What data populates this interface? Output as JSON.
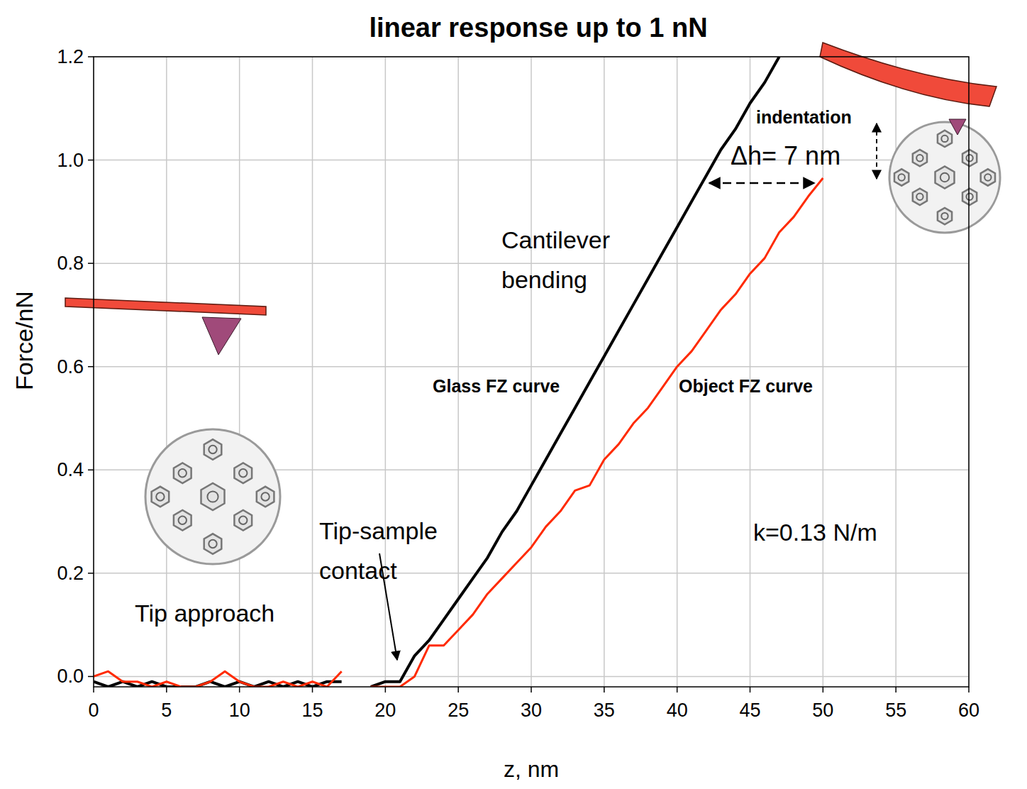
{
  "chart_data": {
    "type": "line",
    "title": "linear response up to 1 nN",
    "x_label": "z, nm",
    "y_label": "Force/nN",
    "x": [
      0,
      1,
      2,
      3,
      4,
      5,
      6,
      7,
      8,
      9,
      10,
      11,
      12,
      13,
      14,
      15,
      16,
      17,
      18,
      19,
      20,
      21,
      22,
      23,
      24,
      25,
      26,
      27,
      28,
      29,
      30,
      31,
      32,
      33,
      34,
      35,
      36,
      37,
      38,
      39,
      40,
      41,
      42,
      43,
      44,
      45,
      46,
      47,
      48,
      49,
      50
    ],
    "series": [
      {
        "name": "Glass FZ curve",
        "color": "#000000",
        "values": [
          -0.01,
          -0.02,
          -0.01,
          -0.02,
          -0.01,
          -0.02,
          -0.02,
          -0.02,
          -0.01,
          -0.02,
          -0.01,
          -0.02,
          -0.01,
          -0.02,
          -0.01,
          -0.02,
          -0.01,
          -0.01,
          null,
          -0.02,
          -0.01,
          -0.01,
          0.04,
          0.07,
          0.11,
          0.15,
          0.19,
          0.23,
          0.28,
          0.32,
          0.37,
          0.42,
          0.47,
          0.52,
          0.57,
          0.62,
          0.67,
          0.72,
          0.77,
          0.82,
          0.87,
          0.92,
          0.97,
          1.02,
          1.06,
          1.11,
          1.15,
          1.2,
          null,
          null,
          null
        ]
      },
      {
        "name": "Object FZ curve",
        "color": "#ff2a00",
        "values": [
          0,
          0.01,
          -0.01,
          -0.01,
          -0.02,
          -0.01,
          -0.02,
          -0.02,
          -0.01,
          0.01,
          -0.01,
          -0.02,
          -0.02,
          -0.01,
          -0.02,
          -0.01,
          -0.02,
          0.01,
          null,
          -0.02,
          -0.02,
          -0.02,
          0.0,
          0.06,
          0.06,
          0.09,
          0.12,
          0.16,
          0.19,
          0.22,
          0.25,
          0.29,
          0.32,
          0.36,
          0.37,
          0.42,
          0.45,
          0.49,
          0.52,
          0.56,
          0.6,
          0.63,
          0.67,
          0.71,
          0.74,
          0.78,
          0.81,
          0.86,
          0.89,
          0.93,
          0.965
        ]
      }
    ],
    "xlim": [
      0,
      60
    ],
    "ylim": [
      -0.02,
      1.2
    ],
    "xticks": [
      0,
      5,
      10,
      15,
      20,
      25,
      30,
      35,
      40,
      45,
      50,
      55,
      60
    ],
    "yticks": [
      {
        "value": 0,
        "label": "0.0"
      },
      0.2,
      0.4,
      0.6,
      0.8,
      {
        "value": 1,
        "label": "1.0"
      },
      1.2
    ],
    "grid": true,
    "annotations": [
      "Cantilever bending",
      "Tip-sample contact",
      "Tip approach",
      "indentation",
      "Δh= 7 nm",
      "k=0.13 N/m"
    ]
  }
}
